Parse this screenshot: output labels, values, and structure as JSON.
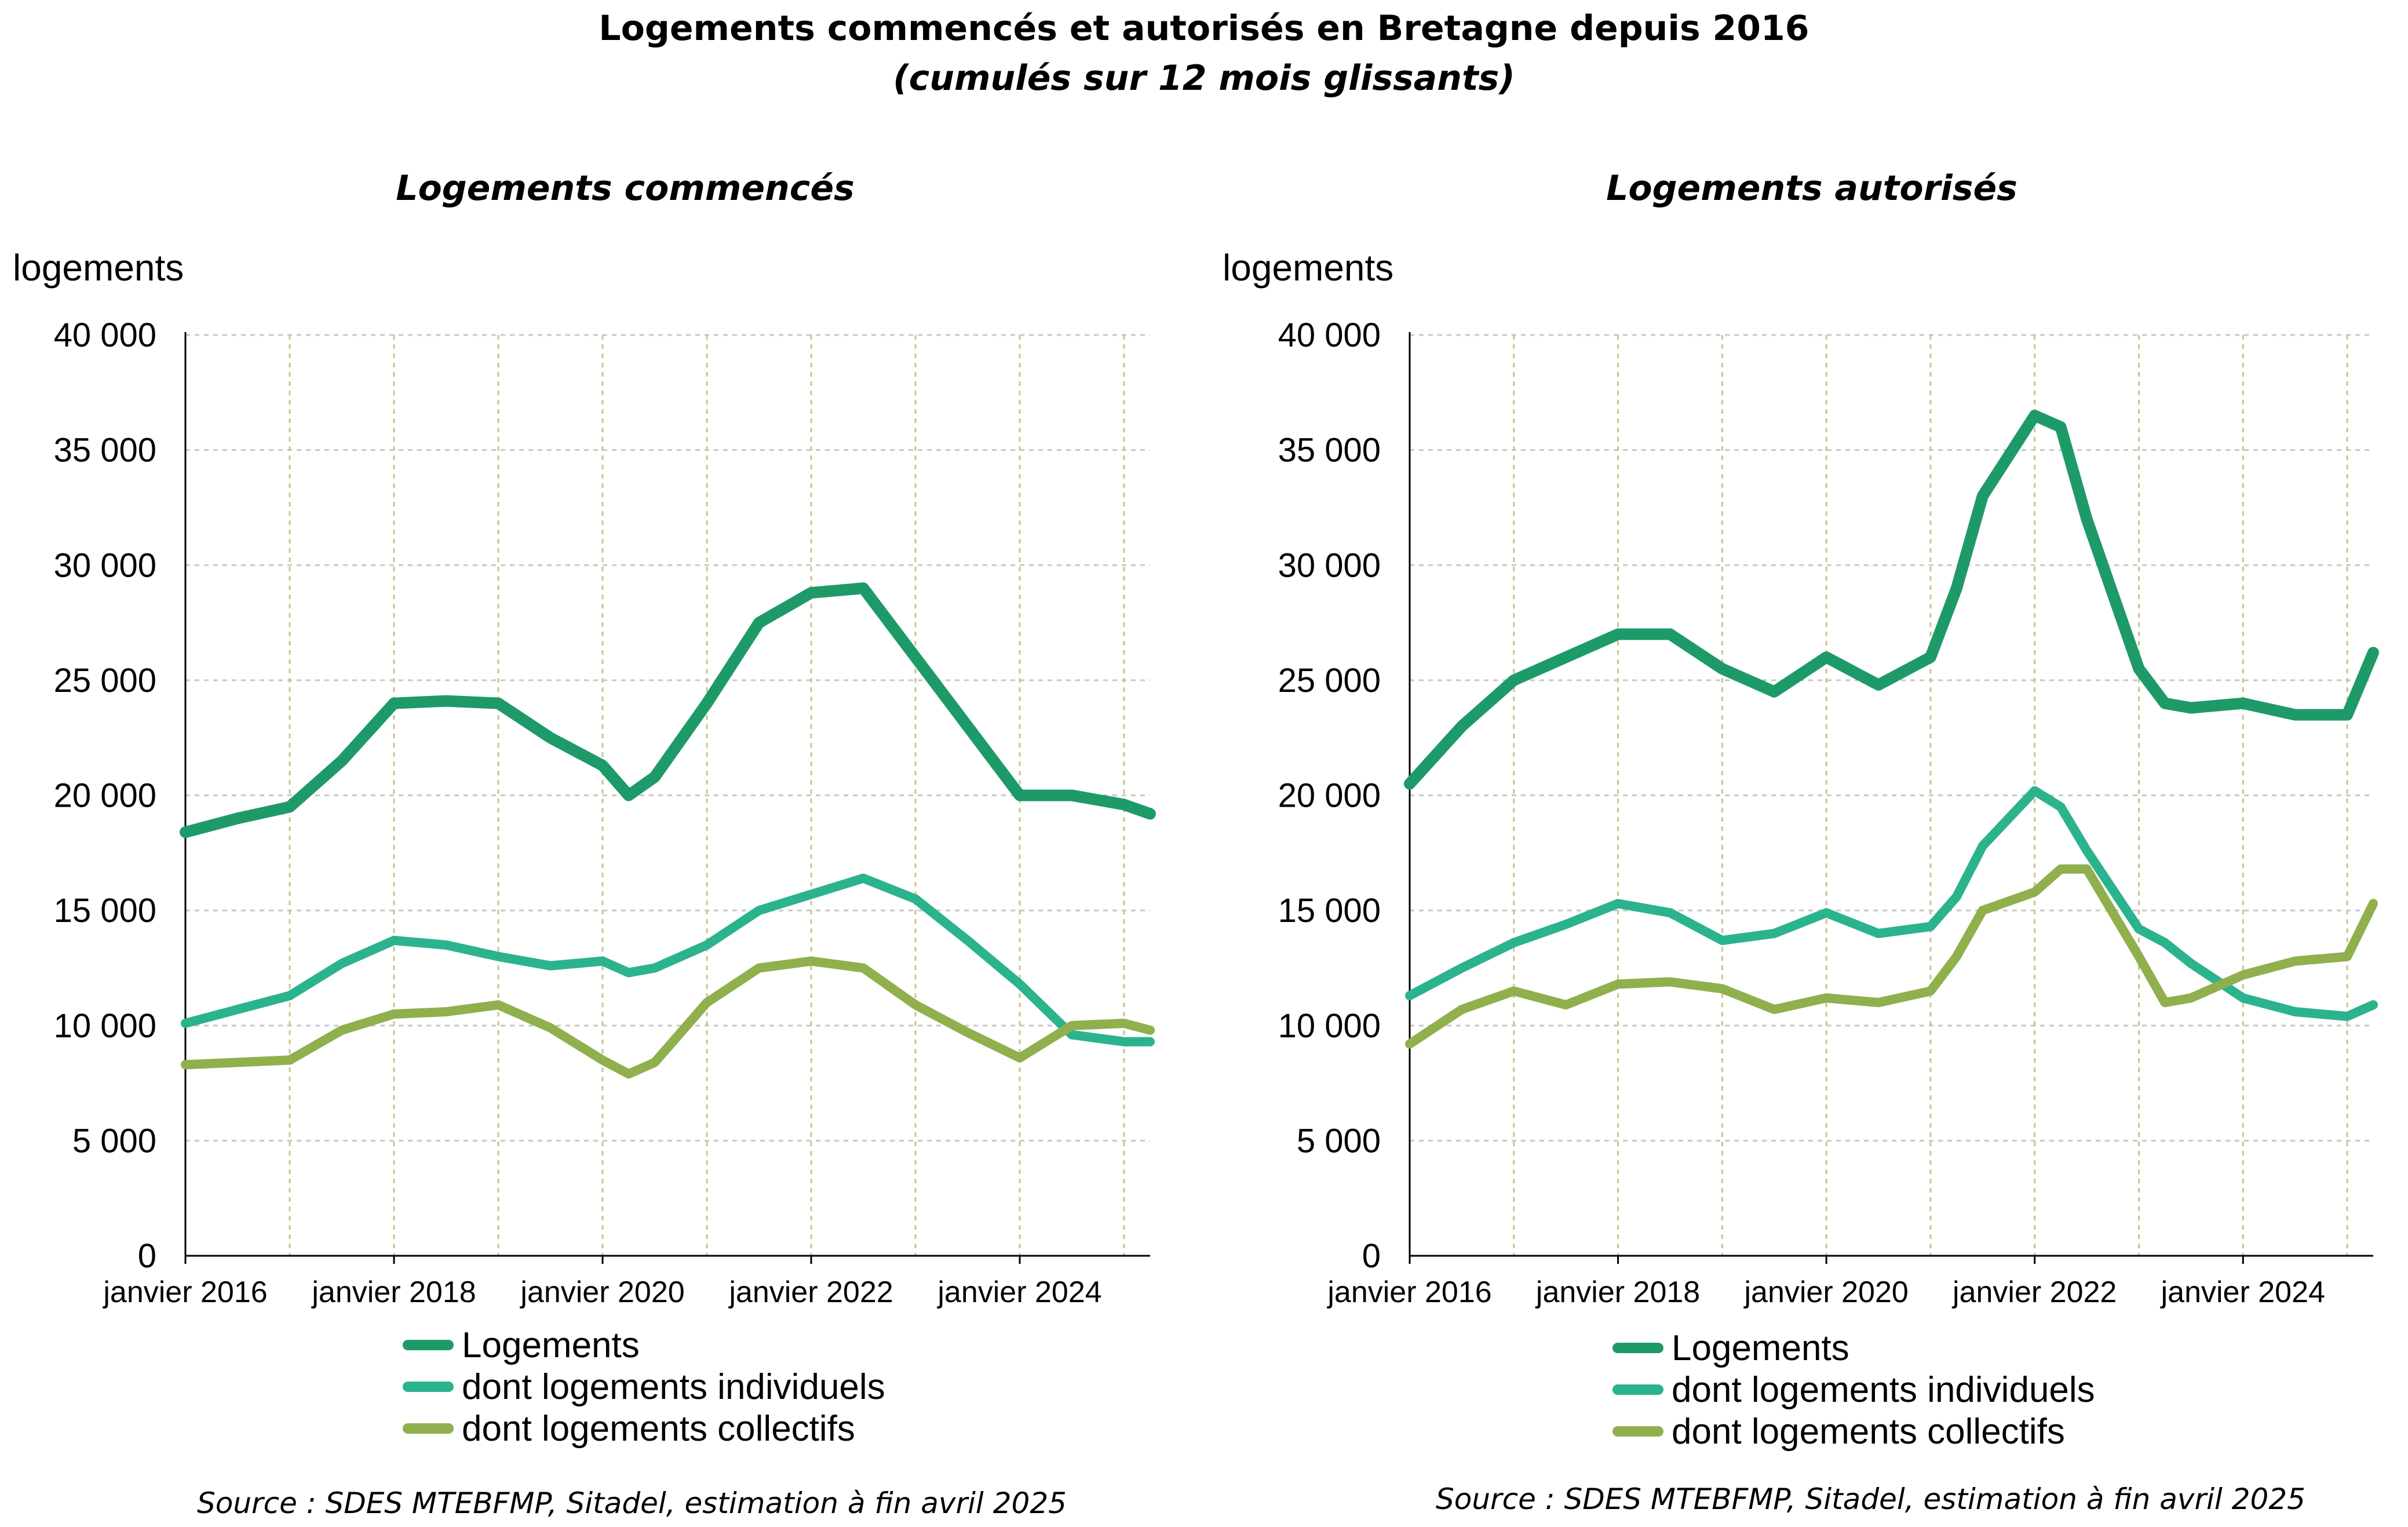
{
  "title": "Logements commencés et autorisés en Bretagne depuis 2016",
  "subtitle": "(cumulés sur 12 mois glissants)",
  "colors": {
    "logements": "#1e9a69",
    "individuels": "#2bb38e",
    "collectifs": "#8fb04d",
    "grid": "#c8c8c8",
    "vgrid": "#c9c48a"
  },
  "panels": [
    {
      "title": "Logements commencés",
      "ylabel": "logements",
      "source": "Source : SDES MTEBFMP, Sitadel, estimation à fin avril 2025",
      "legend": [
        "Logements",
        "dont logements individuels",
        "dont logements collectifs"
      ]
    },
    {
      "title": "Logements autorisés",
      "ylabel": "logements",
      "source": "Source : SDES MTEBFMP, Sitadel, estimation à fin avril 2025",
      "legend": [
        "Logements",
        "dont logements individuels",
        "dont logements collectifs"
      ]
    }
  ],
  "chart_data": [
    {
      "type": "line",
      "title": "Logements commencés",
      "ylabel": "logements",
      "ylim": [
        0,
        40000
      ],
      "yticks": [
        0,
        5000,
        10000,
        15000,
        20000,
        25000,
        30000,
        35000,
        40000
      ],
      "ytick_labels": [
        "0",
        "5 000",
        "10 000",
        "15 000",
        "20 000",
        "25 000",
        "30 000",
        "35 000",
        "40 000"
      ],
      "xticks": [
        2016,
        2018,
        2020,
        2022,
        2024
      ],
      "xtick_labels": [
        "janvier 2016",
        "janvier 2018",
        "janvier 2020",
        "janvier 2022",
        "janvier 2024"
      ],
      "xlim": [
        2016,
        2025.25
      ],
      "grid": true,
      "legend_position": "bottom",
      "series": [
        {
          "name": "Logements",
          "x": [
            2016,
            2016.5,
            2017,
            2017.5,
            2018,
            2018.5,
            2019,
            2019.5,
            2020,
            2020.25,
            2020.5,
            2021,
            2021.5,
            2022,
            2022.5,
            2023,
            2023.5,
            2024,
            2024.5,
            2025,
            2025.25
          ],
          "y": [
            18400,
            19000,
            19500,
            21500,
            24000,
            24100,
            24000,
            22500,
            21300,
            20000,
            20800,
            24000,
            27500,
            28800,
            29000,
            26000,
            23000,
            20000,
            20000,
            19600,
            19200
          ]
        },
        {
          "name": "dont logements individuels",
          "x": [
            2016,
            2016.5,
            2017,
            2017.5,
            2018,
            2018.5,
            2019,
            2019.5,
            2020,
            2020.25,
            2020.5,
            2021,
            2021.5,
            2022,
            2022.5,
            2023,
            2023.5,
            2024,
            2024.5,
            2025,
            2025.25
          ],
          "y": [
            10100,
            10700,
            11300,
            12700,
            13700,
            13500,
            13000,
            12600,
            12800,
            12300,
            12500,
            13500,
            15000,
            15700,
            16400,
            15500,
            13700,
            11800,
            9600,
            9300,
            9300
          ]
        },
        {
          "name": "dont logements collectifs",
          "x": [
            2016,
            2016.5,
            2017,
            2017.5,
            2018,
            2018.5,
            2019,
            2019.5,
            2020,
            2020.25,
            2020.5,
            2021,
            2021.5,
            2022,
            2022.5,
            2023,
            2023.5,
            2024,
            2024.5,
            2025,
            2025.25
          ],
          "y": [
            8300,
            8400,
            8500,
            9800,
            10500,
            10600,
            10900,
            9900,
            8500,
            7900,
            8400,
            11000,
            12500,
            12800,
            12500,
            10900,
            9700,
            8600,
            10000,
            10100,
            9800
          ]
        }
      ]
    },
    {
      "type": "line",
      "title": "Logements autorisés",
      "ylabel": "logements",
      "ylim": [
        0,
        40000
      ],
      "yticks": [
        0,
        5000,
        10000,
        15000,
        20000,
        25000,
        30000,
        35000,
        40000
      ],
      "ytick_labels": [
        "0",
        "5 000",
        "10 000",
        "15 000",
        "20 000",
        "25 000",
        "30 000",
        "35 000",
        "40 000"
      ],
      "xticks": [
        2016,
        2018,
        2020,
        2022,
        2024
      ],
      "xtick_labels": [
        "janvier 2016",
        "janvier 2018",
        "janvier 2020",
        "janvier 2022",
        "janvier 2024"
      ],
      "xlim": [
        2016,
        2025.25
      ],
      "grid": true,
      "legend_position": "bottom",
      "series": [
        {
          "name": "Logements",
          "x": [
            2016,
            2016.5,
            2017,
            2017.5,
            2018,
            2018.5,
            2019,
            2019.5,
            2020,
            2020.5,
            2021,
            2021.25,
            2021.5,
            2022,
            2022.25,
            2022.5,
            2023,
            2023.25,
            2023.5,
            2024,
            2024.5,
            2025,
            2025.25
          ],
          "y": [
            20500,
            23000,
            25000,
            26000,
            27000,
            27000,
            25500,
            24500,
            26000,
            24800,
            26000,
            29000,
            33000,
            36500,
            36000,
            32000,
            25500,
            24000,
            23800,
            24000,
            23500,
            23500,
            26200
          ]
        },
        {
          "name": "dont logements individuels",
          "x": [
            2016,
            2016.5,
            2017,
            2017.5,
            2018,
            2018.5,
            2019,
            2019.5,
            2020,
            2020.5,
            2021,
            2021.25,
            2021.5,
            2022,
            2022.25,
            2022.5,
            2023,
            2023.25,
            2023.5,
            2024,
            2024.5,
            2025,
            2025.25
          ],
          "y": [
            11300,
            12500,
            13600,
            14400,
            15300,
            14900,
            13700,
            14000,
            14900,
            14000,
            14300,
            15600,
            17800,
            20200,
            19500,
            17600,
            14200,
            13600,
            12700,
            11200,
            10600,
            10400,
            10900
          ]
        },
        {
          "name": "dont logements collectifs",
          "x": [
            2016,
            2016.5,
            2017,
            2017.5,
            2018,
            2018.5,
            2019,
            2019.5,
            2020,
            2020.5,
            2021,
            2021.25,
            2021.5,
            2022,
            2022.25,
            2022.5,
            2023,
            2023.25,
            2023.5,
            2024,
            2024.5,
            2025,
            2025.25
          ],
          "y": [
            9200,
            10700,
            11500,
            10900,
            11800,
            11900,
            11600,
            10700,
            11200,
            11000,
            11500,
            13000,
            15000,
            15800,
            16800,
            16800,
            13000,
            11000,
            11200,
            12200,
            12800,
            13000,
            15300
          ]
        }
      ]
    }
  ]
}
